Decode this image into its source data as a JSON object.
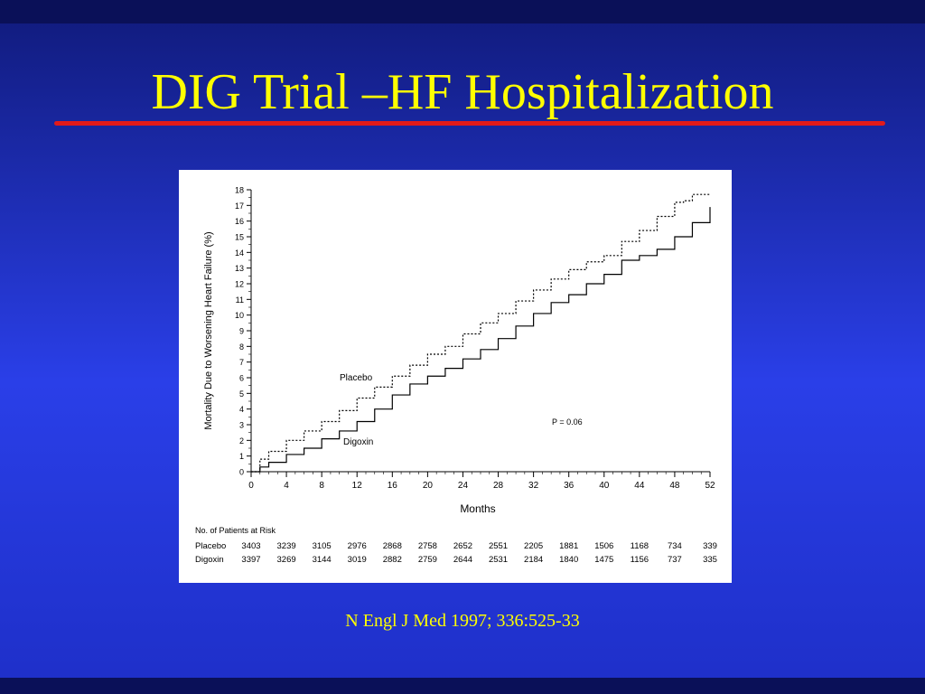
{
  "slide": {
    "title": "DIG Trial –HF Hospitalization",
    "citation": "N Engl J Med 1997; 336:525-33",
    "colors": {
      "title": "#ffff00",
      "rule": "#e21a1a",
      "background": "#2a3fe8"
    }
  },
  "chart_data": {
    "type": "line",
    "xlabel": "Months",
    "ylabel": "Mortality Due to Worsening Heart Failure (%)",
    "xlim": [
      0,
      52
    ],
    "ylim": [
      0,
      18
    ],
    "xticks": [
      0,
      4,
      8,
      12,
      16,
      20,
      24,
      28,
      32,
      36,
      40,
      44,
      48,
      52
    ],
    "yticks": [
      0,
      1,
      2,
      3,
      4,
      5,
      6,
      7,
      8,
      9,
      10,
      11,
      12,
      13,
      14,
      15,
      16,
      17,
      18
    ],
    "annotation": "P = 0.06",
    "series": [
      {
        "name": "Placebo",
        "style": "dashed",
        "points": [
          [
            0,
            0
          ],
          [
            1,
            0.8
          ],
          [
            2,
            1.3
          ],
          [
            4,
            2.0
          ],
          [
            6,
            2.6
          ],
          [
            8,
            3.2
          ],
          [
            10,
            3.9
          ],
          [
            12,
            4.7
          ],
          [
            14,
            5.4
          ],
          [
            16,
            6.1
          ],
          [
            18,
            6.8
          ],
          [
            20,
            7.5
          ],
          [
            22,
            8.0
          ],
          [
            24,
            8.8
          ],
          [
            26,
            9.5
          ],
          [
            28,
            10.1
          ],
          [
            30,
            10.9
          ],
          [
            32,
            11.6
          ],
          [
            34,
            12.3
          ],
          [
            36,
            12.9
          ],
          [
            38,
            13.4
          ],
          [
            40,
            13.8
          ],
          [
            42,
            14.7
          ],
          [
            44,
            15.4
          ],
          [
            46,
            16.3
          ],
          [
            48,
            17.2
          ],
          [
            49,
            17.3
          ],
          [
            50,
            17.7
          ],
          [
            52,
            17.7
          ]
        ]
      },
      {
        "name": "Digoxin",
        "style": "solid",
        "points": [
          [
            0,
            0
          ],
          [
            1,
            0.3
          ],
          [
            2,
            0.6
          ],
          [
            4,
            1.1
          ],
          [
            6,
            1.5
          ],
          [
            8,
            2.1
          ],
          [
            10,
            2.6
          ],
          [
            12,
            3.2
          ],
          [
            14,
            4.0
          ],
          [
            16,
            4.9
          ],
          [
            18,
            5.6
          ],
          [
            20,
            6.1
          ],
          [
            22,
            6.6
          ],
          [
            24,
            7.2
          ],
          [
            26,
            7.8
          ],
          [
            28,
            8.5
          ],
          [
            30,
            9.3
          ],
          [
            32,
            10.1
          ],
          [
            34,
            10.8
          ],
          [
            36,
            11.3
          ],
          [
            38,
            12.0
          ],
          [
            40,
            12.6
          ],
          [
            42,
            13.5
          ],
          [
            44,
            13.8
          ],
          [
            46,
            14.2
          ],
          [
            48,
            15.0
          ],
          [
            50,
            15.9
          ],
          [
            52,
            16.9
          ]
        ]
      }
    ],
    "risk_table": {
      "title": "No. of Patients at Risk",
      "rows": [
        {
          "label": "Placebo",
          "values": [
            "3403",
            "3239",
            "3105",
            "2976",
            "2868",
            "2758",
            "2652",
            "2551",
            "2205",
            "1881",
            "1506",
            "1168",
            "734",
            "339"
          ]
        },
        {
          "label": "Digoxin",
          "values": [
            "3397",
            "3269",
            "3144",
            "3019",
            "2882",
            "2759",
            "2644",
            "2531",
            "2184",
            "1840",
            "1475",
            "1156",
            "737",
            "335"
          ]
        }
      ]
    }
  }
}
